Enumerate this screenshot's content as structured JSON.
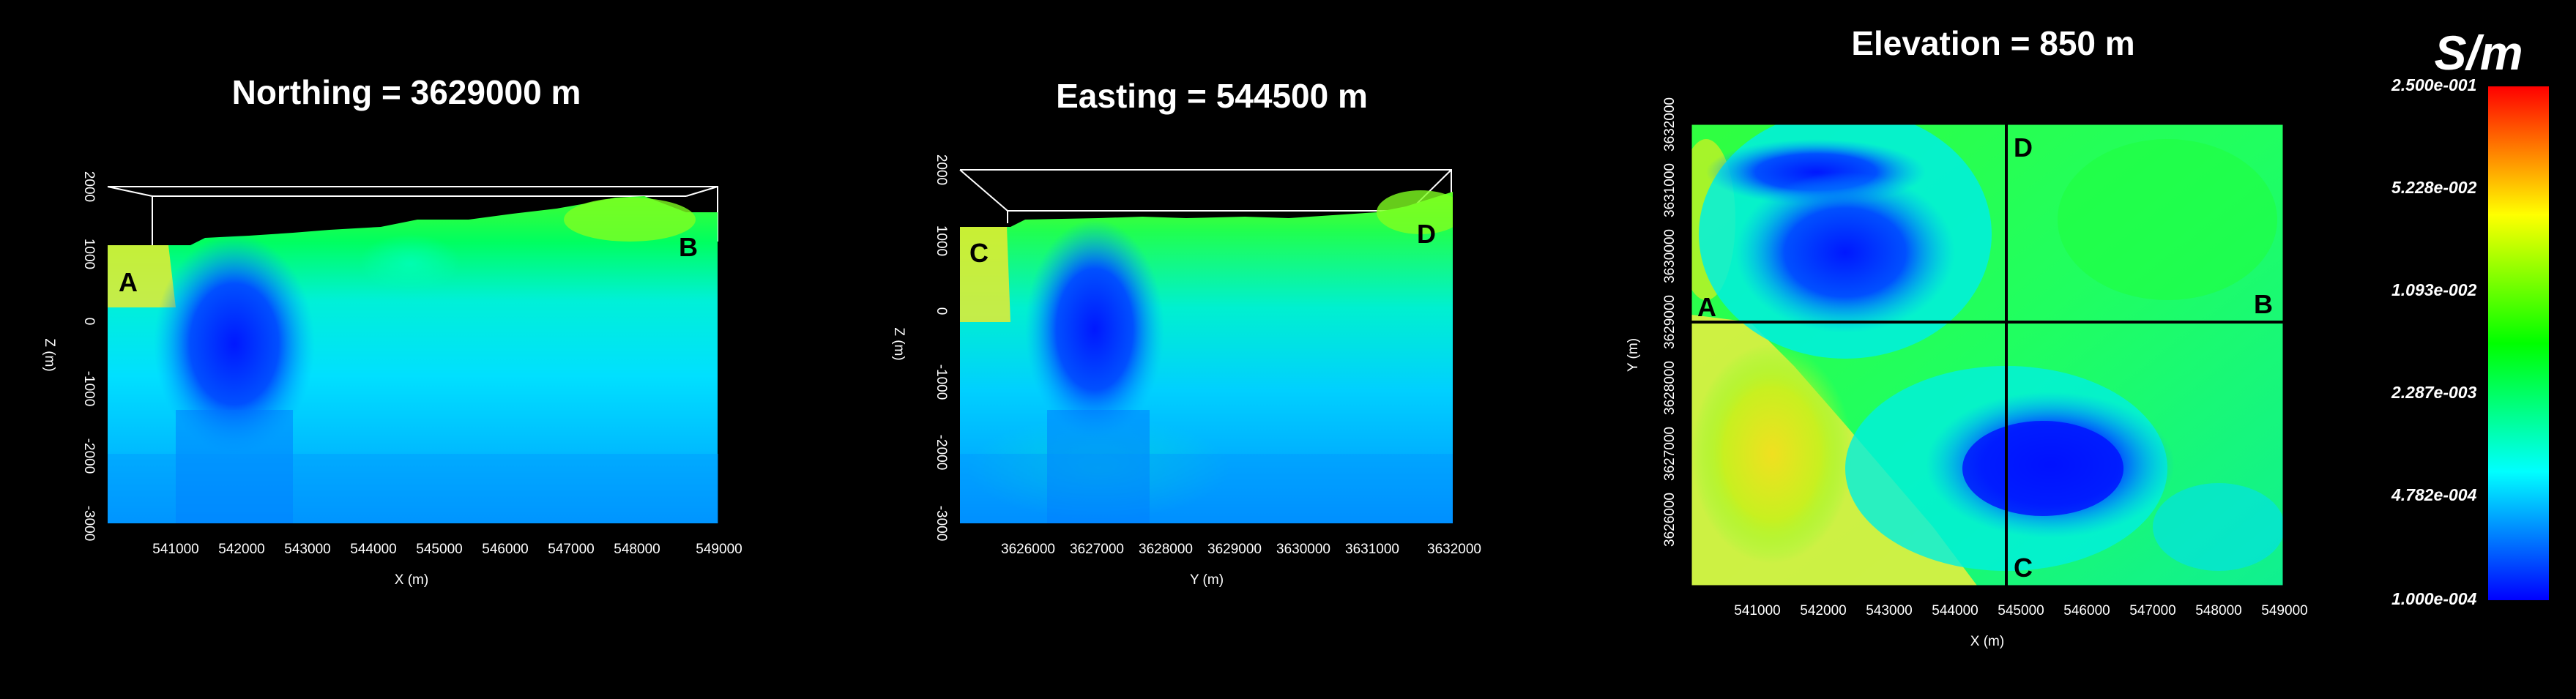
{
  "chart_data": [
    {
      "type": "heatmap",
      "title": "Northing = 3629000 m",
      "xlabel": "X (m)",
      "ylabel": "Z (m)",
      "xlim": [
        540000,
        549000
      ],
      "ylim": [
        -3000,
        2000
      ],
      "x_ticks": [
        "541000",
        "542000",
        "543000",
        "544000",
        "545000",
        "546000",
        "547000",
        "548000",
        "549000"
      ],
      "y_ticks": [
        "2000",
        "1000",
        "0",
        "-1000",
        "-2000",
        "-3000"
      ],
      "labels": [
        "A",
        "B"
      ],
      "conductive_bodies": [
        {
          "x_center": 542200,
          "z_center": -200,
          "log10_sigma": -3.4
        }
      ]
    },
    {
      "type": "heatmap",
      "title": "Easting = 544500 m",
      "xlabel": "Y (m)",
      "ylabel": "Z (m)",
      "xlim": [
        3625000,
        3632000
      ],
      "ylim": [
        -3000,
        2000
      ],
      "x_ticks": [
        "3626000",
        "3627000",
        "3628000",
        "3629000",
        "3630000",
        "3631000",
        "3632000"
      ],
      "y_ticks": [
        "2000",
        "1000",
        "0",
        "-1000",
        "-2000",
        "-3000"
      ],
      "labels": [
        "C",
        "D"
      ],
      "conductive_bodies": [
        {
          "y_center": 3627000,
          "z_center": -100,
          "log10_sigma": -3.5
        }
      ]
    },
    {
      "type": "heatmap",
      "title": "Elevation = 850 m",
      "xlabel": "X (m)",
      "ylabel": "Y (m)",
      "xlim": [
        540000,
        549000
      ],
      "ylim": [
        3625000,
        3632000
      ],
      "x_ticks": [
        "541000",
        "542000",
        "543000",
        "544000",
        "545000",
        "546000",
        "547000",
        "548000",
        "549000"
      ],
      "y_ticks": [
        "3626000",
        "3627000",
        "3628000",
        "3629000",
        "3630000",
        "3631000",
        "3632000"
      ],
      "labels": [
        "A",
        "B",
        "C",
        "D"
      ],
      "profile_lines": [
        {
          "from": "A",
          "to": "B",
          "northing": 3629000
        },
        {
          "from": "C",
          "to": "D",
          "easting": 544500
        }
      ],
      "conductive_bodies": [
        {
          "x_center": 542500,
          "y_center": 3630200,
          "log10_sigma": -3.4
        },
        {
          "x_center": 545800,
          "y_center": 3626900,
          "log10_sigma": -3.6
        }
      ]
    }
  ],
  "colorbar": {
    "unit": "S/m",
    "ticks": [
      "2.500e-001",
      "5.228e-002",
      "1.093e-002",
      "2.287e-003",
      "4.782e-004",
      "1.000e-004"
    ],
    "scale": "log",
    "range": [
      0.0001,
      0.25
    ],
    "colors": [
      "#0000ff",
      "#00ffff",
      "#00ff00",
      "#ffff00",
      "#ff0000"
    ]
  }
}
